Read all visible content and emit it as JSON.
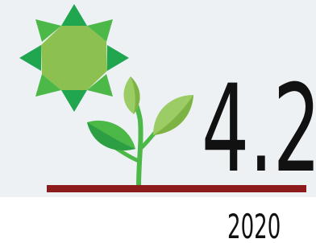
{
  "title": "4.2",
  "year": "2020"
}
